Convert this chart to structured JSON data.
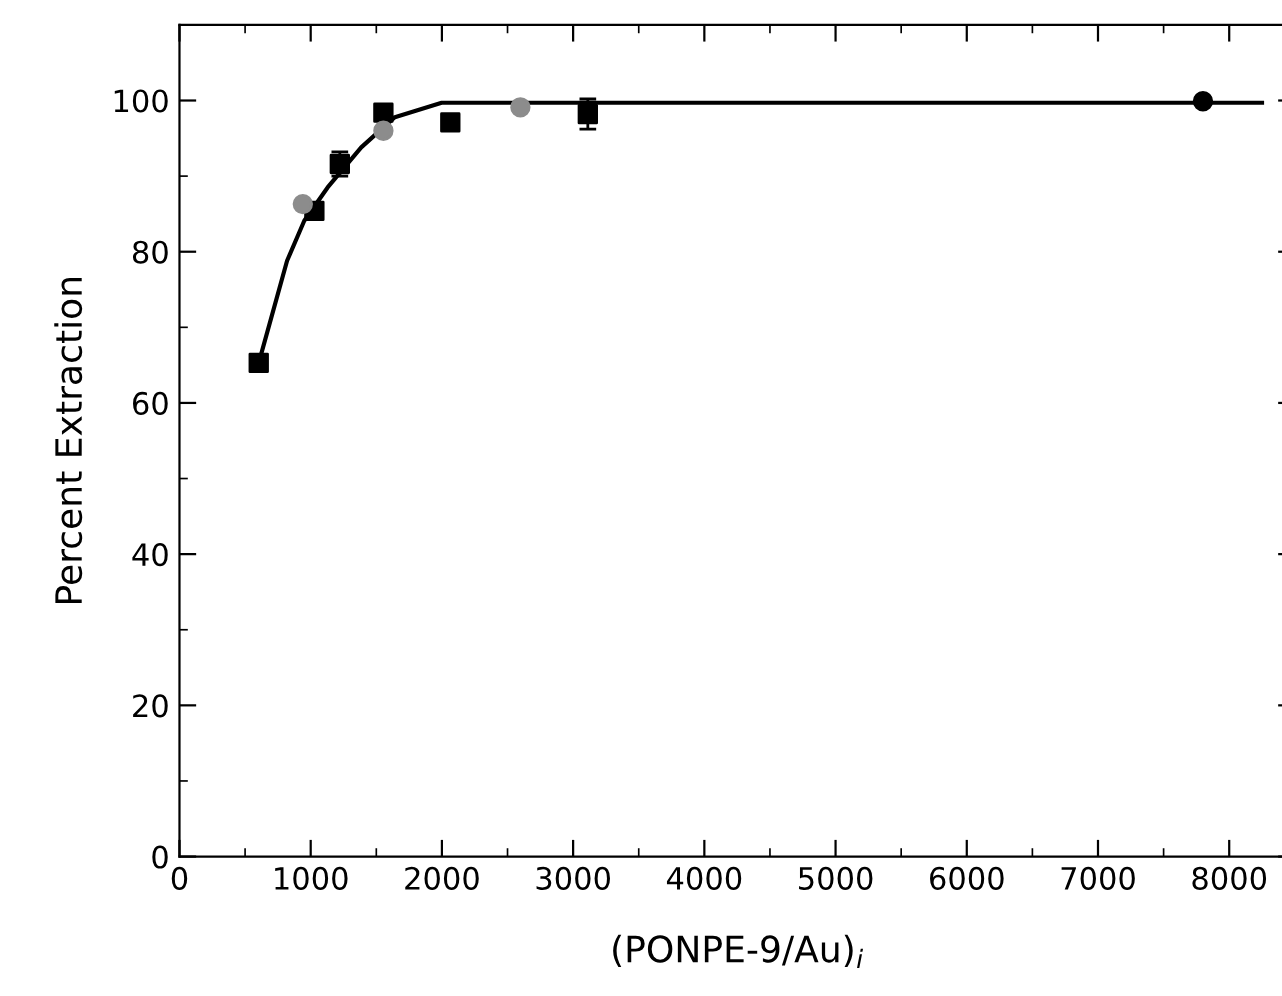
{
  "chart_data": {
    "type": "scatter",
    "xlabel": "(PONPE-9/Au)$_{i}$",
    "ylabel": "Percent Extraction",
    "xlim": [
      0,
      8500
    ],
    "ylim": [
      0,
      110
    ],
    "xticks": [
      0,
      1000,
      2000,
      3000,
      4000,
      5000,
      6000,
      7000,
      8000
    ],
    "yticks": [
      0,
      20,
      40,
      60,
      80,
      100
    ],
    "grid": false,
    "legend": false,
    "series": [
      {
        "type": "line",
        "color": "#000000",
        "marker": "none",
        "x": [
          604,
          820,
          951,
          1129,
          1385,
          1641,
          1998,
          8250
        ],
        "values": [
          65.3,
          78.8,
          84.1,
          88.5,
          93.8,
          97.8,
          99.7,
          99.7
        ]
      },
      {
        "color": "#000000",
        "marker": "square",
        "x": [
          604,
          1028,
          1222,
          1554,
          2064,
          3112
        ],
        "values": [
          65.3,
          85.4,
          91.6,
          98.4,
          97.1,
          98.2
        ],
        "errors": [
          null,
          null,
          1.6,
          null,
          null,
          2
        ]
      },
      {
        "color": "#8c8c8c",
        "marker": "circle",
        "x": [
          940,
          1554,
          2598
        ],
        "values": [
          86.3,
          96.0,
          99.1
        ]
      },
      {
        "color": "#000000",
        "marker": "circle",
        "x": [
          7800
        ],
        "values": [
          99.9
        ]
      }
    ]
  }
}
